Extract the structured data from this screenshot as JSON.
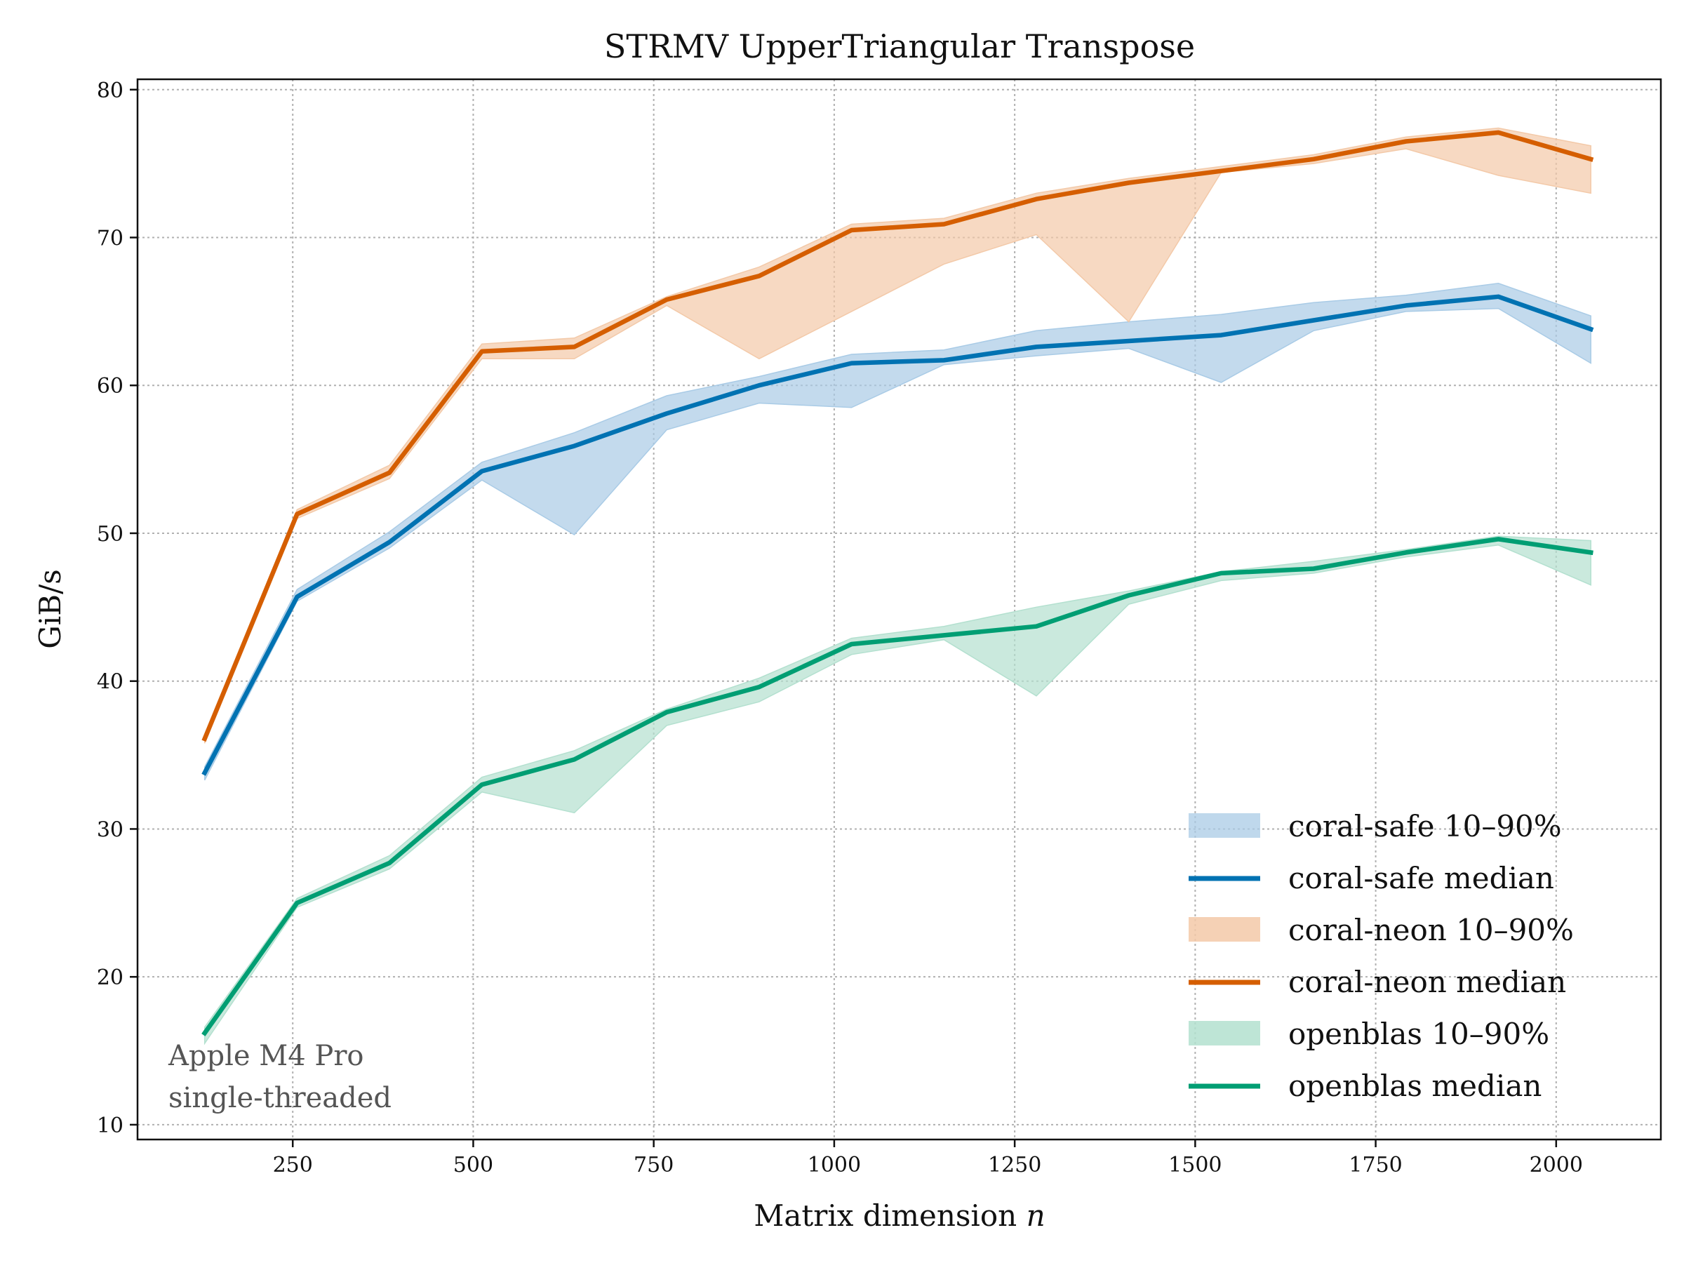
{
  "chart_data": {
    "type": "line",
    "title": "STRMV UpperTriangular Transpose",
    "xlabel": "Matrix dimension",
    "xlabel_var": "n",
    "ylabel": "GiB/s",
    "xlim": [
      35,
      2145
    ],
    "ylim": [
      9,
      80.7
    ],
    "xticks": [
      250,
      500,
      750,
      1000,
      1250,
      1500,
      1750,
      2000
    ],
    "yticks": [
      10,
      20,
      30,
      40,
      50,
      60,
      70,
      80
    ],
    "grid": true,
    "legend_position": "lower-right",
    "x": [
      128,
      256,
      384,
      512,
      640,
      768,
      896,
      1024,
      1152,
      1280,
      1408,
      1536,
      1664,
      1792,
      1920,
      2048
    ],
    "series": [
      {
        "name": "coral-safe",
        "color": "#0072b2",
        "band_color": "#a9cbe6",
        "median_label": "coral-safe median",
        "band_label": "coral-safe 10–90%",
        "median": [
          33.8,
          45.7,
          49.4,
          54.2,
          55.9,
          58.1,
          60.0,
          61.5,
          61.7,
          62.6,
          63.0,
          63.4,
          64.4,
          65.4,
          66.0,
          63.8
        ],
        "p10": [
          33.3,
          45.4,
          49.0,
          53.6,
          49.9,
          57.0,
          58.8,
          58.5,
          61.4,
          62.0,
          62.5,
          60.2,
          63.7,
          65.0,
          65.2,
          61.5
        ],
        "p90": [
          34.2,
          46.2,
          50.1,
          54.8,
          56.8,
          59.3,
          60.6,
          62.1,
          62.4,
          63.7,
          64.3,
          64.8,
          65.6,
          66.1,
          66.9,
          64.7
        ]
      },
      {
        "name": "coral-neon",
        "color": "#d55e00",
        "band_color": "#f3c9a8",
        "median_label": "coral-neon median",
        "band_label": "coral-neon 10–90%",
        "median": [
          36.1,
          51.3,
          54.1,
          62.3,
          62.6,
          65.8,
          67.4,
          70.5,
          70.9,
          72.6,
          73.7,
          74.5,
          75.3,
          76.5,
          77.1,
          75.3
        ],
        "p10": [
          35.8,
          51.0,
          53.7,
          61.8,
          61.8,
          65.4,
          61.8,
          65.0,
          68.2,
          70.2,
          64.3,
          74.4,
          75.0,
          76.0,
          74.2,
          73.0
        ],
        "p90": [
          36.4,
          51.6,
          54.6,
          62.8,
          63.2,
          66.0,
          68.0,
          70.9,
          71.3,
          73.0,
          74.0,
          74.8,
          75.6,
          76.8,
          77.4,
          76.2
        ]
      },
      {
        "name": "openblas",
        "color": "#009e73",
        "band_color": "#b3e0cf",
        "median_label": "openblas median",
        "band_label": "openblas 10–90%",
        "median": [
          16.2,
          25.0,
          27.7,
          33.0,
          34.7,
          37.9,
          39.6,
          42.5,
          43.1,
          43.7,
          45.8,
          47.3,
          47.6,
          48.7,
          49.6,
          48.7
        ],
        "p10": [
          15.5,
          24.7,
          27.3,
          32.5,
          31.1,
          37.0,
          38.6,
          41.8,
          42.8,
          39.0,
          45.2,
          46.8,
          47.3,
          48.4,
          49.2,
          46.5
        ],
        "p90": [
          16.6,
          25.3,
          28.2,
          33.5,
          35.3,
          38.1,
          40.2,
          42.9,
          43.7,
          45.0,
          46.1,
          47.4,
          48.1,
          48.9,
          49.8,
          49.5
        ]
      }
    ],
    "annotation": {
      "line1": "Apple M4 Pro",
      "line2": "single-threaded"
    }
  }
}
